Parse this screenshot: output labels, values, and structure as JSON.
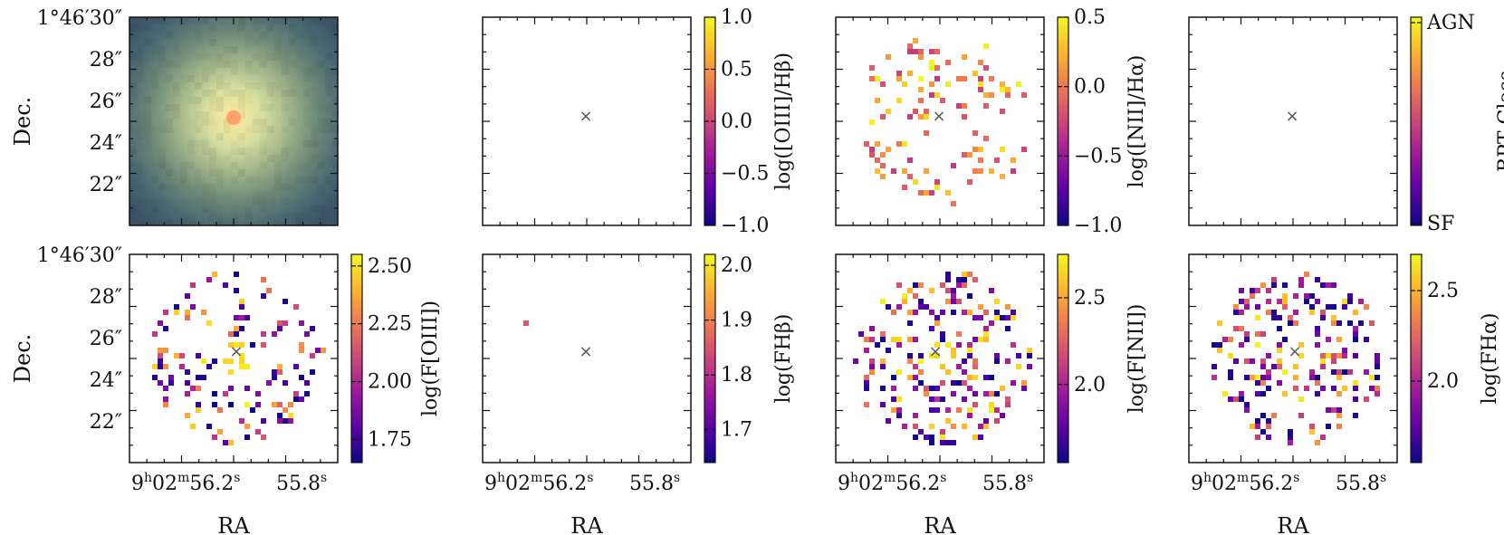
{
  "chart_data": [
    {
      "type": "image",
      "id": "rgb",
      "row": 0,
      "col": 0,
      "ylabel": "Dec.",
      "yticks": [
        "1°46′30″",
        "28″",
        "26″",
        "24″",
        "22″"
      ],
      "xticks": [],
      "xlabel": "",
      "colorbar": null
    },
    {
      "type": "heatmap",
      "id": "oiii_hb",
      "row": 0,
      "col": 1,
      "marker": "×",
      "colorbar": {
        "label": "log([OIII]/Hβ)",
        "ticks": [
          "1.0",
          "0.5",
          "0.0",
          "−0.5",
          "−1.0"
        ],
        "range": [
          -1.0,
          1.0
        ]
      },
      "pixels": []
    },
    {
      "type": "heatmap",
      "id": "nii_ha",
      "row": 0,
      "col": 2,
      "marker": "×",
      "colorbar": {
        "label": "log([NII]/Hα)",
        "ticks": [
          "0.5",
          "0.0",
          "−0.5",
          "−1.0"
        ],
        "range": [
          -1.0,
          0.5
        ]
      },
      "pixel_count": 120,
      "pixel_value_range": [
        -0.3,
        0.5
      ]
    },
    {
      "type": "heatmap",
      "id": "bpt",
      "row": 0,
      "col": 3,
      "marker": "×",
      "colorbar": {
        "label": "BPT Class",
        "ticks": [
          "AGN",
          "SF"
        ],
        "range": [
          0,
          1
        ]
      },
      "pixels": []
    },
    {
      "type": "heatmap",
      "id": "f_oiii",
      "row": 1,
      "col": 0,
      "marker": "×",
      "ylabel": "Dec.",
      "yticks": [
        "1°46′30″",
        "28″",
        "26″",
        "24″",
        "22″"
      ],
      "xlabel": "RA",
      "xticks": [
        "9h02m56.2s",
        "55.8s"
      ],
      "colorbar": {
        "label": "log(F[OIII])",
        "ticks": [
          "2.50",
          "2.25",
          "2.00",
          "1.75"
        ],
        "range": [
          1.65,
          2.55
        ]
      },
      "pixel_count": 140,
      "pixel_value_range": [
        1.65,
        2.55
      ]
    },
    {
      "type": "heatmap",
      "id": "f_hb",
      "row": 1,
      "col": 1,
      "marker": "×",
      "xlabel": "RA",
      "xticks": [
        "9h02m56.2s",
        "55.8s"
      ],
      "colorbar": {
        "label": "log(FHβ)",
        "ticks": [
          "2.0",
          "1.9",
          "1.8",
          "1.7"
        ],
        "range": [
          1.64,
          2.02
        ]
      },
      "pixel_count": 1,
      "pixel_value_range": [
        1.85,
        1.85
      ]
    },
    {
      "type": "heatmap",
      "id": "f_nii",
      "row": 1,
      "col": 2,
      "marker": "×",
      "xlabel": "RA",
      "xticks": [
        "9h02m56.2s",
        "55.8s"
      ],
      "colorbar": {
        "label": "log(F[NII])",
        "ticks": [
          "2.5",
          "2.0"
        ],
        "range": [
          1.55,
          2.75
        ]
      },
      "pixel_count": 220,
      "pixel_value_range": [
        1.55,
        2.75
      ]
    },
    {
      "type": "heatmap",
      "id": "f_ha",
      "row": 1,
      "col": 3,
      "marker": "×",
      "xlabel": "RA",
      "xticks": [
        "9h02m56.2s",
        "55.8s"
      ],
      "colorbar": {
        "label": "log(FHα)",
        "ticks": [
          "2.5",
          "2.0"
        ],
        "range": [
          1.55,
          2.7
        ]
      },
      "pixel_count": 220,
      "pixel_value_range": [
        1.55,
        2.7
      ]
    }
  ],
  "labels": {
    "dec": "Dec.",
    "ra": "RA",
    "marker": "×"
  },
  "colormap": [
    "#0d0887",
    "#5c01a6",
    "#9c179e",
    "#cc4778",
    "#ed7953",
    "#fdb42f",
    "#f0f921"
  ]
}
